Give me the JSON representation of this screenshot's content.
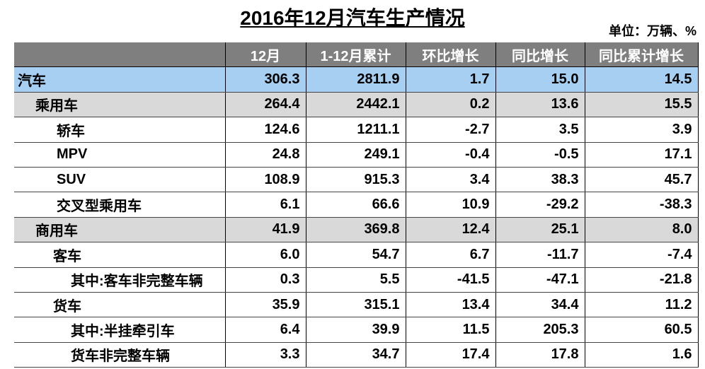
{
  "header": {
    "title": "2016年12月汽车生产情况",
    "unit": "单位：万辆、%"
  },
  "table": {
    "columns": [
      "",
      "12月",
      "1-12月累计",
      "环比增长",
      "同比增长",
      "同比累计增长"
    ],
    "rows": [
      [
        "汽车",
        "306.3",
        "2811.9",
        "1.7",
        "15.0",
        "14.5"
      ],
      [
        "乘用车",
        "264.4",
        "2442.1",
        "0.2",
        "13.6",
        "15.5"
      ],
      [
        "轿车",
        "124.6",
        "1211.1",
        "-2.7",
        "3.5",
        "3.9"
      ],
      [
        "MPV",
        "24.8",
        "249.1",
        "-0.4",
        "-0.5",
        "17.1"
      ],
      [
        "SUV",
        "108.9",
        "915.3",
        "3.4",
        "38.3",
        "45.7"
      ],
      [
        "交叉型乘用车",
        "6.1",
        "66.6",
        "10.9",
        "-29.2",
        "-38.3"
      ],
      [
        "商用车",
        "41.9",
        "369.8",
        "12.4",
        "25.1",
        "8.0"
      ],
      [
        "客车",
        "6.0",
        "54.7",
        "6.7",
        "-11.7",
        "-7.4"
      ],
      [
        "其中:客车非完整车辆",
        "0.3",
        "5.5",
        "-41.5",
        "-47.1",
        "-21.8"
      ],
      [
        "货车",
        "35.9",
        "315.1",
        "13.4",
        "34.4",
        "11.2"
      ],
      [
        "其中:半挂牵引车",
        "6.4",
        "39.9",
        "11.5",
        "205.3",
        "60.5"
      ],
      [
        "货车非完整车辆",
        "3.3",
        "34.7",
        "17.4",
        "17.8",
        "1.6"
      ]
    ]
  }
}
